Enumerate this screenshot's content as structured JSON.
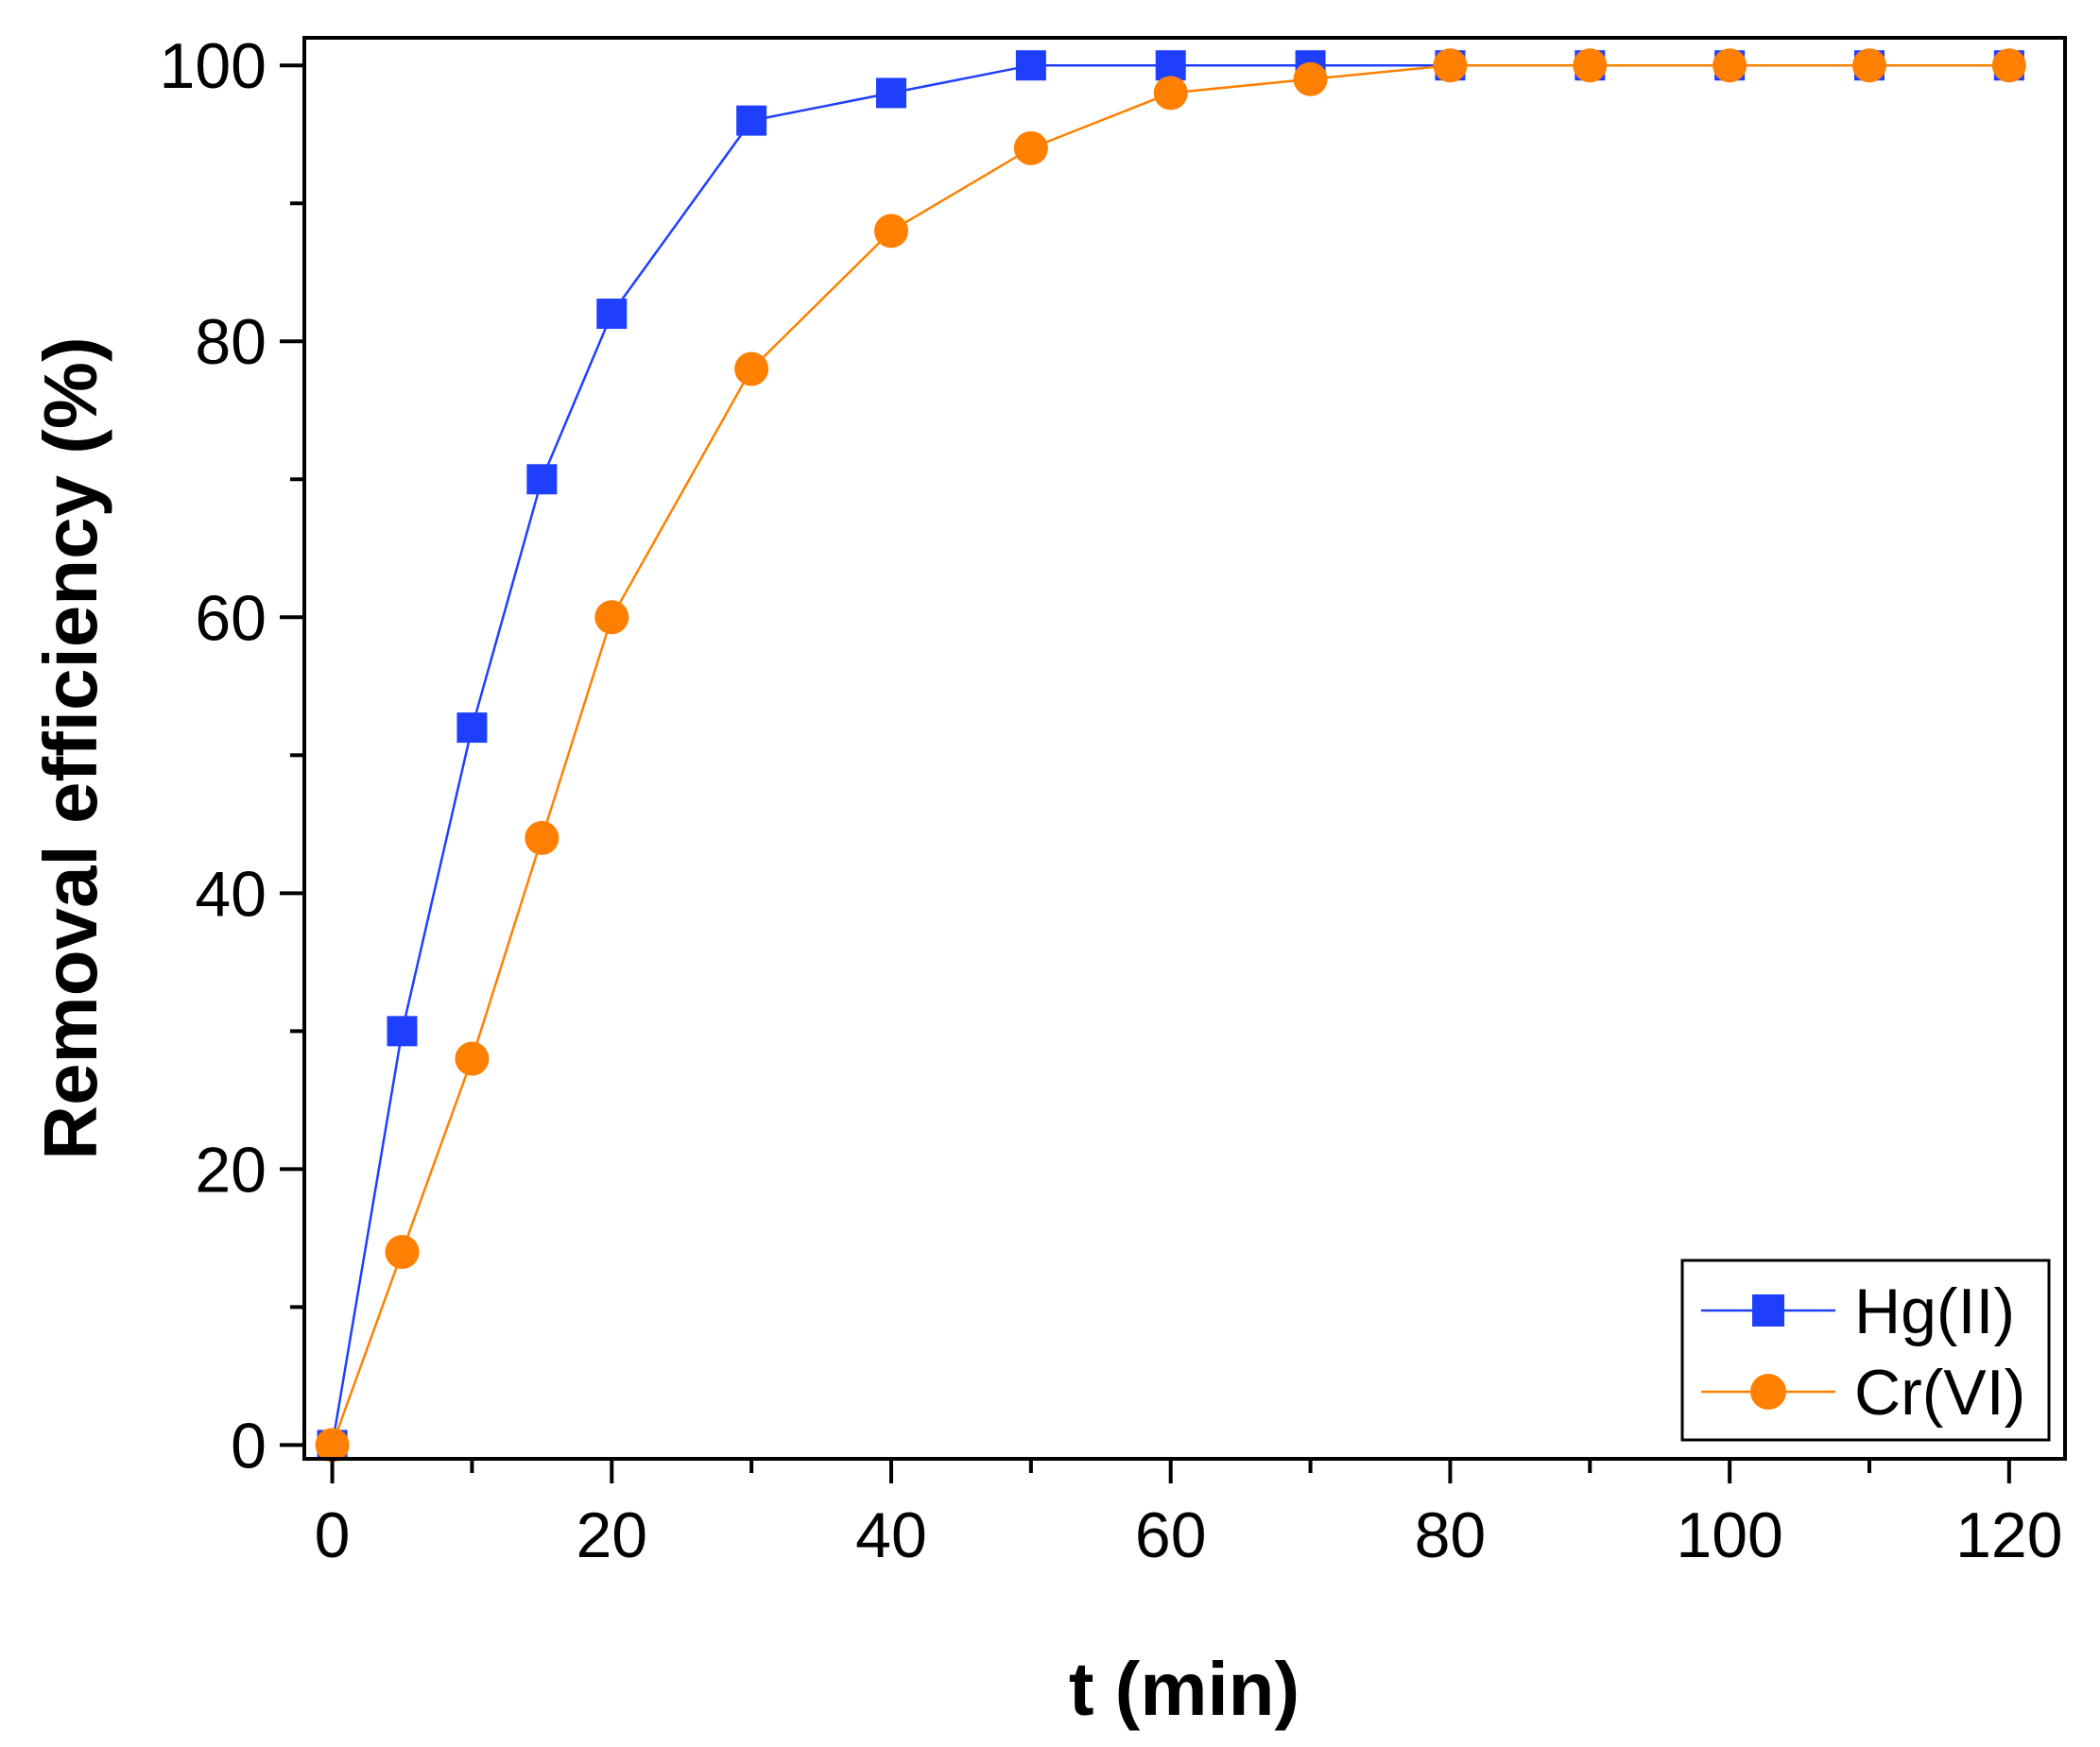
{
  "chart_data": {
    "type": "line",
    "xlabel": "t (min)",
    "ylabel": "Removal efficiency (%)",
    "xlim": [
      -2,
      124
    ],
    "ylim": [
      -1,
      102
    ],
    "x_major_ticks": [
      0,
      20,
      40,
      60,
      80,
      100,
      120
    ],
    "x_minor_ticks": [
      10,
      30,
      50,
      70,
      90,
      110
    ],
    "y_major_ticks": [
      0,
      20,
      40,
      60,
      80,
      100
    ],
    "y_minor_ticks": [
      10,
      30,
      50,
      70,
      90
    ],
    "grid": false,
    "legend_position": "bottom-right",
    "series": [
      {
        "name": "Hg(II)",
        "marker": "square",
        "color": "#1f3fff",
        "x": [
          0,
          5,
          10,
          15,
          20,
          30,
          40,
          50,
          60,
          70,
          80,
          90,
          100,
          110,
          120
        ],
        "y": [
          0,
          30,
          52,
          70,
          82,
          96,
          98,
          100,
          100,
          100,
          100,
          100,
          100,
          100,
          100
        ]
      },
      {
        "name": "Cr(VI)",
        "marker": "circle",
        "color": "#ff8000",
        "x": [
          0,
          5,
          10,
          15,
          20,
          30,
          40,
          50,
          60,
          70,
          80,
          90,
          100,
          110,
          120
        ],
        "y": [
          0,
          14,
          28,
          44,
          60,
          78,
          88,
          94,
          98,
          99,
          100,
          100,
          100,
          100,
          100
        ]
      }
    ]
  }
}
